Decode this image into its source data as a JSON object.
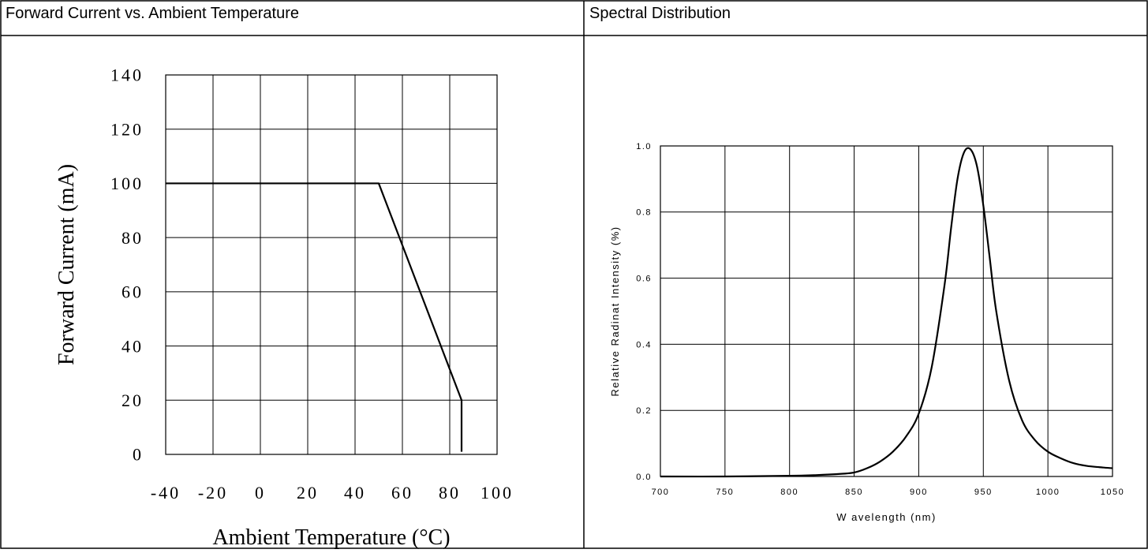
{
  "panels": {
    "left": {
      "title": "Forward Current vs. Ambient Temperature"
    },
    "right": {
      "title": "Spectral Distribution"
    }
  },
  "chart_data": [
    {
      "type": "line",
      "title": "Forward Current vs. Ambient Temperature",
      "xlabel": "Ambient Temperature (°C)",
      "ylabel": "Forward Current (mA)",
      "xlim": [
        -40,
        100
      ],
      "ylim": [
        0,
        140
      ],
      "x_ticks": [
        -40,
        -20,
        0,
        20,
        40,
        60,
        80,
        100
      ],
      "y_ticks": [
        0,
        20,
        40,
        60,
        80,
        100,
        120,
        140
      ],
      "x_tick_labels": [
        "-40",
        "-20",
        "0",
        "20",
        "40",
        "60",
        "80",
        "100"
      ],
      "y_tick_labels": [
        "0",
        "20",
        "40",
        "60",
        "80",
        "100",
        "120",
        "140"
      ],
      "grid": true,
      "series": [
        {
          "x": [
            -40,
            50,
            85,
            85
          ],
          "y": [
            100,
            100,
            20,
            1
          ]
        }
      ],
      "line_color": "#000000"
    },
    {
      "type": "line",
      "title": "Spectral Distribution",
      "xlabel": "W avelength (nm)",
      "ylabel": "Relative Radinat Intensity (%)",
      "xlim": [
        700,
        1050
      ],
      "ylim": [
        0,
        1.0
      ],
      "x_ticks": [
        700,
        750,
        800,
        850,
        900,
        950,
        1000,
        1050
      ],
      "y_ticks": [
        0.0,
        0.2,
        0.4,
        0.6,
        0.8,
        1.0
      ],
      "x_tick_labels": [
        "700",
        "750",
        "800",
        "850",
        "900",
        "950",
        "1000",
        "1050"
      ],
      "y_tick_labels": [
        "0.0",
        "0.2",
        "0.4",
        "0.6",
        "0.8",
        "1.0"
      ],
      "grid": true,
      "series": [
        {
          "x": [
            700,
            750,
            800,
            820,
            840,
            850,
            860,
            870,
            880,
            890,
            900,
            910,
            920,
            925,
            930,
            935,
            940,
            945,
            950,
            955,
            960,
            970,
            980,
            990,
            1000,
            1010,
            1020,
            1030,
            1040,
            1050
          ],
          "y": [
            0.0,
            0.0,
            0.002,
            0.004,
            0.008,
            0.012,
            0.025,
            0.045,
            0.075,
            0.12,
            0.19,
            0.33,
            0.58,
            0.75,
            0.9,
            0.98,
            0.99,
            0.94,
            0.82,
            0.66,
            0.5,
            0.29,
            0.17,
            0.11,
            0.075,
            0.055,
            0.04,
            0.032,
            0.028,
            0.025
          ]
        }
      ],
      "line_color": "#000000"
    }
  ]
}
